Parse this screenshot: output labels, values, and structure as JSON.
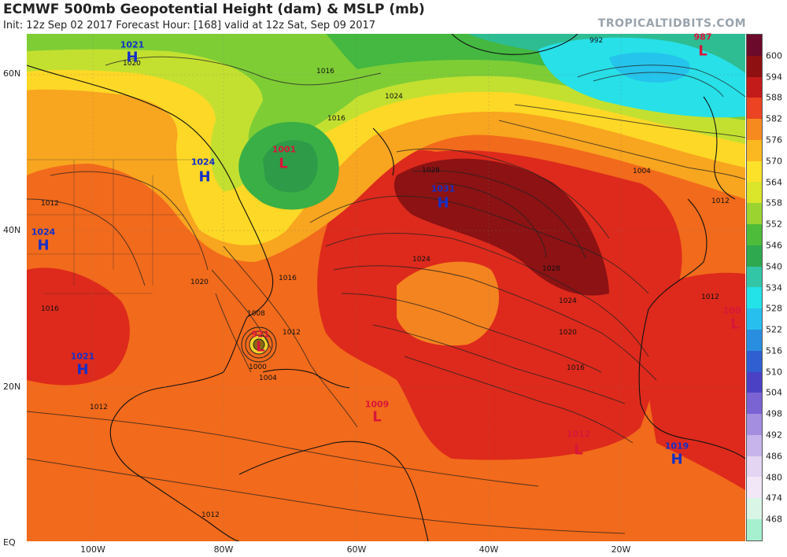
{
  "header": {
    "title": "ECMWF 500mb Geopotential Height (dam) & MSLP (mb)",
    "subtitle": "Init: 12z Sep 02 2017   Forecast Hour: [168]   valid at 12z Sat, Sep 09 2017",
    "brand": "TROPICALTIDBITS.COM"
  },
  "axes": {
    "lat_labels": [
      "60N",
      "40N",
      "20N",
      "EQ"
    ],
    "lon_labels": [
      "100W",
      "80W",
      "60W",
      "40W",
      "20W"
    ]
  },
  "colorbar": {
    "labels": [
      "600",
      "594",
      "588",
      "582",
      "576",
      "570",
      "564",
      "558",
      "552",
      "546",
      "540",
      "534",
      "528",
      "522",
      "516",
      "510",
      "504",
      "498",
      "492",
      "486",
      "480",
      "474",
      "468"
    ],
    "colors": [
      "#6b0a2a",
      "#8e1010",
      "#c31a1a",
      "#ec4422",
      "#f78a1f",
      "#fbb820",
      "#fde22a",
      "#dbe52a",
      "#9bd431",
      "#4cbc3a",
      "#2ea94f",
      "#33c6a6",
      "#23e2e8",
      "#27c0ee",
      "#2a8ee0",
      "#2f5fd1",
      "#4a41c5",
      "#7a63d3",
      "#a38ee0",
      "#c6b4ea",
      "#e4d5f2",
      "#f2e7f7",
      "#d9f5e6",
      "#a6f0cf"
    ]
  },
  "systems": [
    {
      "type": "H",
      "value": "1021"
    },
    {
      "type": "H",
      "value": "1024"
    },
    {
      "type": "H",
      "value": "1024"
    },
    {
      "type": "L",
      "value": "1001"
    },
    {
      "type": "H",
      "value": "1031"
    },
    {
      "type": "L",
      "value": "987"
    },
    {
      "type": "L",
      "value": "921"
    },
    {
      "type": "H",
      "value": "1021"
    },
    {
      "type": "L",
      "value": "1009"
    },
    {
      "type": "L",
      "value": "1012"
    },
    {
      "type": "H",
      "value": "1019"
    },
    {
      "type": "L",
      "value": "100"
    }
  ],
  "isobar_labels": [
    "1020",
    "1016",
    "1012",
    "1008",
    "1004",
    "1000",
    "1024",
    "1028",
    "992",
    "1016",
    "1012",
    "1012",
    "1012",
    "1016",
    "1020",
    "1024",
    "1028",
    "1024",
    "1020",
    "1016",
    "1012",
    "1004",
    "1012",
    "1016"
  ]
}
